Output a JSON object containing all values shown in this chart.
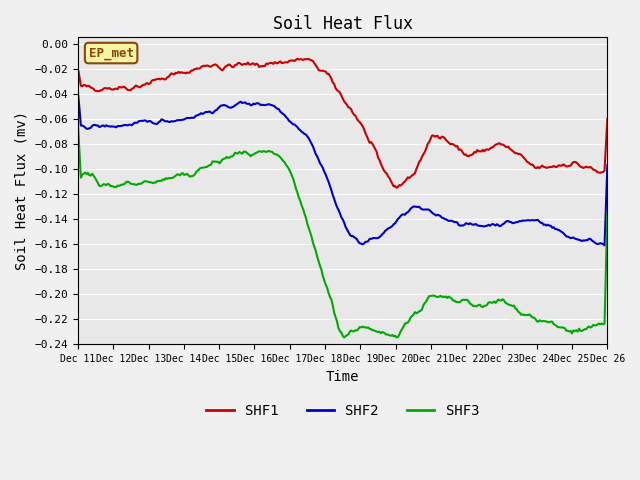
{
  "title": "Soil Heat Flux",
  "xlabel": "Time",
  "ylabel": "Soil Heat Flux (mv)",
  "ylim": [
    -0.24,
    0.005
  ],
  "yticks": [
    0.0,
    -0.02,
    -0.04,
    -0.06,
    -0.08,
    -0.1,
    -0.12,
    -0.14,
    -0.16,
    -0.18,
    -0.2,
    -0.22,
    -0.24
  ],
  "bg_color": "#e8e8e8",
  "annotation_text": "EP_met",
  "annotation_color": "#8B4513",
  "annotation_bg": "#f5f5a0",
  "shf1_color": "#cc0000",
  "shf2_color": "#0000cc",
  "shf3_color": "#00aa00",
  "line_width": 1.5,
  "x_labels": [
    "Dec 11",
    "Dec 12",
    "Dec 13",
    "Dec 14",
    "Dec 15",
    "Dec 16",
    "Dec 17",
    "Dec 18",
    "Dec 19",
    "Dec 20",
    "Dec 21",
    "Dec 22",
    "Dec 23",
    "Dec 24",
    "Dec 25",
    "Dec 26"
  ],
  "n_points": 375
}
